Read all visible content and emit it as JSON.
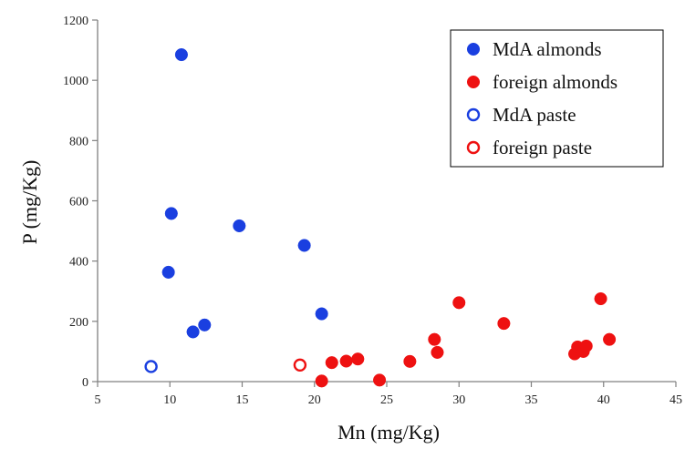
{
  "chart_data": {
    "type": "scatter",
    "xlabel": "Mn (mg/Kg)",
    "ylabel": "P (mg/Kg)",
    "xlim": [
      5,
      45
    ],
    "ylim": [
      0,
      1200
    ],
    "x_ticks": [
      "5",
      "10",
      "15",
      "20",
      "25",
      "30",
      "35",
      "40",
      "45"
    ],
    "y_ticks": [
      "0",
      "200",
      "400",
      "600",
      "800",
      "1000",
      "1200"
    ],
    "grid": false,
    "legend_position": "top-right",
    "series": [
      {
        "name": "MdA almonds",
        "color": "#1a3fe0",
        "marker": "filled-circle",
        "points": [
          {
            "x": 10.8,
            "y": 1085
          },
          {
            "x": 10.1,
            "y": 558
          },
          {
            "x": 14.8,
            "y": 517
          },
          {
            "x": 19.3,
            "y": 452
          },
          {
            "x": 9.9,
            "y": 363
          },
          {
            "x": 20.5,
            "y": 225
          },
          {
            "x": 12.4,
            "y": 188
          },
          {
            "x": 11.6,
            "y": 165
          }
        ]
      },
      {
        "name": "foreign almonds",
        "color": "#ee1111",
        "marker": "filled-circle",
        "points": [
          {
            "x": 20.5,
            "y": 2
          },
          {
            "x": 21.2,
            "y": 63
          },
          {
            "x": 22.2,
            "y": 68
          },
          {
            "x": 23.0,
            "y": 75
          },
          {
            "x": 24.5,
            "y": 5
          },
          {
            "x": 26.6,
            "y": 67
          },
          {
            "x": 28.3,
            "y": 140
          },
          {
            "x": 28.5,
            "y": 97
          },
          {
            "x": 30.0,
            "y": 262
          },
          {
            "x": 33.1,
            "y": 193
          },
          {
            "x": 38.0,
            "y": 92
          },
          {
            "x": 38.2,
            "y": 115
          },
          {
            "x": 38.6,
            "y": 100
          },
          {
            "x": 38.8,
            "y": 118
          },
          {
            "x": 39.8,
            "y": 275
          },
          {
            "x": 40.4,
            "y": 140
          }
        ]
      },
      {
        "name": "MdA paste",
        "color": "#1a3fe0",
        "marker": "open-circle",
        "points": [
          {
            "x": 8.7,
            "y": 50
          }
        ]
      },
      {
        "name": "foreign paste",
        "color": "#ee1111",
        "marker": "open-circle",
        "points": [
          {
            "x": 19.0,
            "y": 55
          }
        ]
      }
    ]
  }
}
